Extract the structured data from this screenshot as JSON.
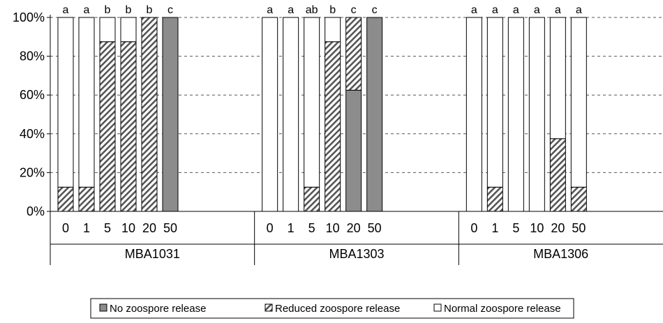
{
  "chart_data": {
    "type": "bar",
    "stacked": true,
    "percent_stacked": true,
    "y_tick_labels": [
      "0%",
      "20%",
      "40%",
      "60%",
      "80%",
      "100%"
    ],
    "ylim": [
      0,
      100
    ],
    "grid": "horizontal dashed",
    "legend_position": "bottom",
    "series": [
      {
        "name": "No zoospore release",
        "key": "no",
        "color": "#8c8c8c",
        "pattern": "solid"
      },
      {
        "name": "Reduced zoospore release",
        "key": "reduced",
        "color": "#ffffff",
        "pattern": "hatch"
      },
      {
        "name": "Normal zoospore release",
        "key": "normal",
        "color": "#ffffff",
        "pattern": "none"
      }
    ],
    "groups": [
      {
        "name": "MBA1031",
        "bars": [
          {
            "category": "0",
            "no": 0,
            "reduced": 12.5,
            "normal": 87.5,
            "letter": "a"
          },
          {
            "category": "1",
            "no": 0,
            "reduced": 12.5,
            "normal": 87.5,
            "letter": "a"
          },
          {
            "category": "5",
            "no": 0,
            "reduced": 87.5,
            "normal": 12.5,
            "letter": "b"
          },
          {
            "category": "10",
            "no": 0,
            "reduced": 87.5,
            "normal": 12.5,
            "letter": "b"
          },
          {
            "category": "20",
            "no": 0,
            "reduced": 100,
            "normal": 0,
            "letter": "b"
          },
          {
            "category": "50",
            "no": 100,
            "reduced": 0,
            "normal": 0,
            "letter": "c"
          }
        ]
      },
      {
        "name": "MBA1303",
        "bars": [
          {
            "category": "0",
            "no": 0,
            "reduced": 0,
            "normal": 100,
            "letter": "a"
          },
          {
            "category": "1",
            "no": 0,
            "reduced": 0,
            "normal": 100,
            "letter": "a"
          },
          {
            "category": "5",
            "no": 0,
            "reduced": 12.5,
            "normal": 87.5,
            "letter": "ab"
          },
          {
            "category": "10",
            "no": 0,
            "reduced": 87.5,
            "normal": 12.5,
            "letter": "b"
          },
          {
            "category": "20",
            "no": 62.5,
            "reduced": 37.5,
            "normal": 0,
            "letter": "c"
          },
          {
            "category": "50",
            "no": 100,
            "reduced": 0,
            "normal": 0,
            "letter": "c"
          }
        ]
      },
      {
        "name": "MBA1306",
        "bars": [
          {
            "category": "0",
            "no": 0,
            "reduced": 0,
            "normal": 100,
            "letter": "a"
          },
          {
            "category": "1",
            "no": 0,
            "reduced": 12.5,
            "normal": 87.5,
            "letter": "a"
          },
          {
            "category": "5",
            "no": 0,
            "reduced": 0,
            "normal": 100,
            "letter": "a"
          },
          {
            "category": "10",
            "no": 0,
            "reduced": 0,
            "normal": 100,
            "letter": "a"
          },
          {
            "category": "20",
            "no": 0,
            "reduced": 37.5,
            "normal": 62.5,
            "letter": "a"
          },
          {
            "category": "50",
            "no": 0,
            "reduced": 12.5,
            "normal": 87.5,
            "letter": "a"
          }
        ]
      }
    ]
  }
}
